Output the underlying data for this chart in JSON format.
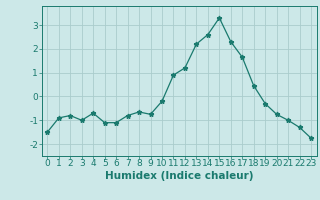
{
  "x": [
    0,
    1,
    2,
    3,
    4,
    5,
    6,
    7,
    8,
    9,
    10,
    11,
    12,
    13,
    14,
    15,
    16,
    17,
    18,
    19,
    20,
    21,
    22,
    23
  ],
  "y": [
    -1.5,
    -0.9,
    -0.8,
    -1.0,
    -0.7,
    -1.1,
    -1.1,
    -0.8,
    -0.65,
    -0.75,
    -0.2,
    0.9,
    1.2,
    2.2,
    2.6,
    3.3,
    2.3,
    1.65,
    0.45,
    -0.3,
    -0.75,
    -1.0,
    -1.3,
    -1.75
  ],
  "line_color": "#1a7a6e",
  "marker": "*",
  "marker_size": 3.5,
  "background_color": "#cce8e8",
  "grid_color": "#aacccc",
  "xlabel": "Humidex (Indice chaleur)",
  "ylim": [
    -2.5,
    3.8
  ],
  "xlim": [
    -0.5,
    23.5
  ],
  "yticks": [
    -2,
    -1,
    0,
    1,
    2,
    3
  ],
  "xticks": [
    0,
    1,
    2,
    3,
    4,
    5,
    6,
    7,
    8,
    9,
    10,
    11,
    12,
    13,
    14,
    15,
    16,
    17,
    18,
    19,
    20,
    21,
    22,
    23
  ],
  "tick_color": "#1a7a6e",
  "label_color": "#1a7a6e",
  "spine_color": "#1a7a6e",
  "xlabel_fontsize": 7.5,
  "tick_fontsize": 6.5
}
